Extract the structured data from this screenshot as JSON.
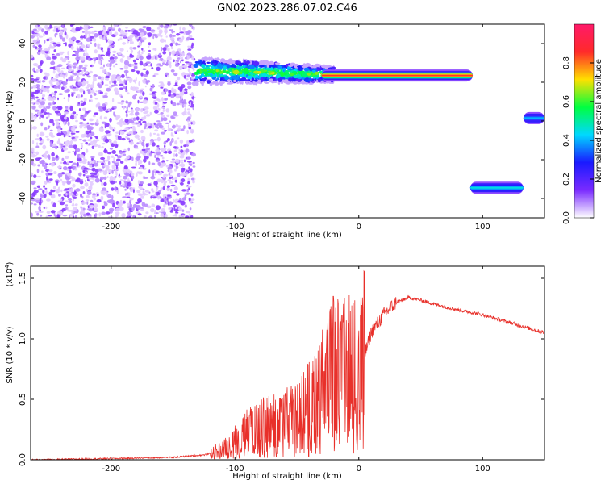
{
  "figure_title": "GN02.2023.286.07.02.C46",
  "top_panel": {
    "xlabel": "Height of straight line (km)",
    "ylabel": "Frequency (Hz)",
    "colorbar_label": "Normalized spectral amplitude",
    "colorbar_ticks": [
      "0.0",
      "0.2",
      "0.4",
      "0.6",
      "0.8"
    ]
  },
  "bottom_panel": {
    "xlabel": "Height of straight line (km)",
    "ylabel": "SNR (10 * v/v)",
    "scale_note": "(x10",
    "scale_exp": "4",
    "scale_close": ")"
  },
  "colors": {
    "snr_line": "#e8302a",
    "colormap": [
      "#ffffff",
      "#7a2bff",
      "#1a1aff",
      "#00d8ff",
      "#00ff40",
      "#ffe000",
      "#ff2a2a",
      "#ff1a6a"
    ]
  },
  "chart_data": [
    {
      "type": "heatmap",
      "xlabel": "Height of straight line (km)",
      "ylabel": "Frequency (Hz)",
      "xlim": [
        -265,
        150
      ],
      "ylim": [
        -50,
        50
      ],
      "x_ticks": [
        -200,
        -100,
        0,
        100
      ],
      "y_ticks": [
        -40,
        -20,
        0,
        20,
        40
      ],
      "colorbar_range": [
        0,
        1
      ],
      "features": [
        {
          "name": "noise",
          "x_range": [
            -265,
            -133
          ],
          "y_range": [
            -50,
            50
          ],
          "amplitude": 0.1
        },
        {
          "name": "dispersed tone",
          "x_range": [
            -133,
            -20
          ],
          "y_start": 24,
          "amplitude": 0.4
        },
        {
          "name": "steady tone",
          "x_range": [
            -30,
            92
          ],
          "y": 23.5,
          "amplitude": 0.85
        },
        {
          "name": "tone",
          "x_range": [
            90,
            133
          ],
          "y": -34.5,
          "amplitude": 0.45
        },
        {
          "name": "tone",
          "x_range": [
            133,
            150
          ],
          "y": 1.5,
          "amplitude": 0.4
        }
      ]
    },
    {
      "type": "line",
      "xlabel": "Height of straight line (km)",
      "ylabel": "SNR (10 * v/v)",
      "xlim": [
        -265,
        150
      ],
      "ylim": [
        0,
        1.6
      ],
      "y_scale": "x10^4",
      "x_ticks": [
        -200,
        -100,
        0,
        100
      ],
      "y_ticks": [
        0.0,
        0.5,
        1.0,
        1.5
      ],
      "x": [
        -265,
        -200,
        -150,
        -125,
        -110,
        -100,
        -90,
        -80,
        -70,
        -60,
        -50,
        -40,
        -30,
        -20,
        -10,
        0,
        10,
        20,
        30,
        40,
        50,
        60,
        80,
        100,
        120,
        150
      ],
      "y": [
        0.0,
        0.01,
        0.02,
        0.04,
        0.08,
        0.16,
        0.22,
        0.26,
        0.28,
        0.3,
        0.34,
        0.42,
        0.55,
        0.72,
        0.7,
        0.7,
        1.05,
        1.2,
        1.3,
        1.34,
        1.32,
        1.29,
        1.24,
        1.2,
        1.14,
        1.05
      ]
    }
  ]
}
